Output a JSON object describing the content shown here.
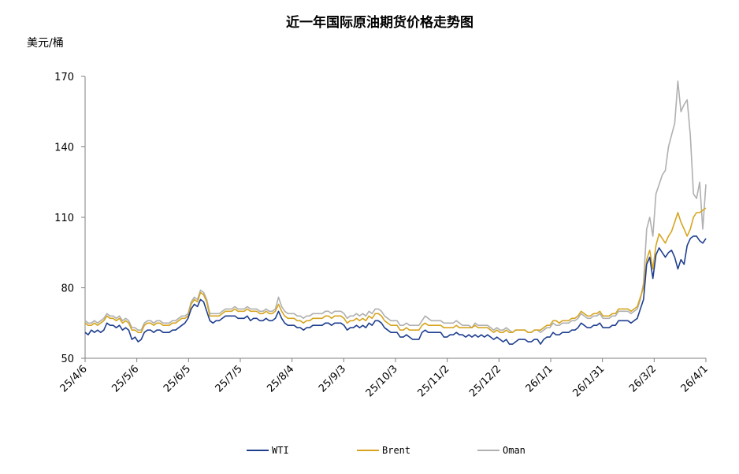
{
  "chart_data": {
    "type": "line",
    "title": "近一年国际原油期货价格走势图",
    "ylabel": "美元/桶",
    "xlabel": "",
    "ylim": [
      50,
      170
    ],
    "yticks": [
      50,
      80,
      110,
      140,
      170
    ],
    "x_ticks": [
      "25/4/6",
      "25/5/6",
      "25/6/5",
      "25/7/5",
      "25/8/4",
      "25/9/3",
      "25/10/3",
      "25/11/2",
      "25/12/2",
      "26/1/1",
      "26/1/31",
      "26/3/2",
      "26/4/1"
    ],
    "legend_position": "bottom",
    "grid": false,
    "series": [
      {
        "name": "WTI",
        "color": "#1f3f8f",
        "values": [
          61,
          60,
          62,
          61,
          62,
          61,
          62,
          65,
          64,
          64,
          63,
          64,
          62,
          63,
          62,
          58,
          59,
          57,
          58,
          61,
          62,
          62,
          61,
          62,
          62,
          61,
          61,
          61,
          62,
          62,
          63,
          64,
          65,
          67,
          71,
          73,
          72,
          75,
          74,
          70,
          66,
          65,
          66,
          66,
          67,
          68,
          68,
          68,
          68,
          67,
          67,
          67,
          68,
          66,
          67,
          67,
          66,
          66,
          67,
          66,
          66,
          67,
          70,
          67,
          65,
          64,
          64,
          64,
          63,
          63,
          62,
          63,
          63,
          64,
          64,
          64,
          64,
          65,
          65,
          64,
          65,
          65,
          65,
          64,
          62,
          63,
          63,
          64,
          63,
          64,
          63,
          65,
          64,
          66,
          66,
          65,
          63,
          62,
          61,
          61,
          61,
          59,
          59,
          60,
          59,
          58,
          58,
          58,
          61,
          62,
          61,
          61,
          61,
          61,
          61,
          59,
          59,
          60,
          60,
          61,
          60,
          60,
          59,
          60,
          59,
          60,
          59,
          60,
          59,
          60,
          59,
          58,
          59,
          58,
          57,
          58,
          56,
          56,
          57,
          58,
          58,
          58,
          57,
          57,
          58,
          58,
          56,
          58,
          59,
          59,
          61,
          60,
          60,
          61,
          61,
          61,
          62,
          62,
          63,
          65,
          64,
          63,
          63,
          64,
          64,
          65,
          63,
          63,
          63,
          64,
          64,
          66,
          66,
          66,
          66,
          65,
          66,
          67,
          71,
          75,
          90,
          93,
          84,
          94,
          97,
          95,
          93,
          95,
          96,
          93,
          88,
          92,
          90,
          98,
          101,
          102,
          102,
          100,
          99,
          101
        ]
      },
      {
        "name": "Brent",
        "color": "#d6a520",
        "values": [
          65,
          64,
          64,
          65,
          64,
          65,
          66,
          68,
          67,
          67,
          66,
          67,
          65,
          66,
          65,
          62,
          62,
          61,
          61,
          64,
          65,
          65,
          64,
          65,
          65,
          64,
          64,
          64,
          65,
          65,
          66,
          67,
          67,
          68,
          73,
          75,
          74,
          78,
          77,
          74,
          68,
          68,
          68,
          68,
          69,
          70,
          70,
          70,
          71,
          70,
          70,
          70,
          71,
          70,
          70,
          70,
          69,
          69,
          70,
          69,
          69,
          70,
          73,
          70,
          68,
          67,
          67,
          67,
          66,
          66,
          65,
          66,
          66,
          67,
          67,
          67,
          67,
          68,
          68,
          67,
          68,
          68,
          68,
          67,
          65,
          66,
          66,
          67,
          66,
          67,
          66,
          68,
          67,
          69,
          69,
          68,
          66,
          65,
          64,
          64,
          64,
          62,
          62,
          63,
          62,
          62,
          62,
          62,
          64,
          65,
          64,
          64,
          64,
          64,
          64,
          63,
          63,
          63,
          63,
          64,
          63,
          63,
          63,
          63,
          63,
          64,
          63,
          63,
          63,
          63,
          62,
          61,
          62,
          61,
          61,
          62,
          61,
          61,
          62,
          62,
          62,
          62,
          61,
          61,
          62,
          62,
          62,
          63,
          64,
          64,
          66,
          66,
          65,
          66,
          66,
          66,
          67,
          67,
          68,
          70,
          69,
          68,
          68,
          69,
          69,
          70,
          68,
          68,
          68,
          69,
          69,
          71,
          71,
          71,
          71,
          70,
          71,
          72,
          76,
          80,
          92,
          96,
          88,
          98,
          103,
          101,
          99,
          102,
          104,
          108,
          112,
          108,
          105,
          102,
          105,
          110,
          112,
          112,
          113,
          114
        ]
      },
      {
        "name": "Oman",
        "color": "#b0b0b0",
        "values": [
          66,
          65,
          65,
          66,
          65,
          66,
          67,
          69,
          68,
          68,
          67,
          68,
          66,
          67,
          66,
          63,
          63,
          62,
          62,
          65,
          66,
          66,
          65,
          66,
          66,
          65,
          65,
          65,
          66,
          66,
          67,
          68,
          68,
          69,
          74,
          76,
          75,
          79,
          78,
          75,
          69,
          69,
          69,
          69,
          70,
          71,
          71,
          71,
          72,
          71,
          71,
          71,
          72,
          71,
          71,
          71,
          70,
          70,
          71,
          70,
          70,
          71,
          76,
          72,
          70,
          69,
          69,
          69,
          68,
          68,
          67,
          68,
          68,
          69,
          69,
          69,
          69,
          70,
          70,
          69,
          70,
          70,
          70,
          69,
          67,
          68,
          68,
          69,
          68,
          69,
          68,
          70,
          69,
          71,
          71,
          70,
          68,
          67,
          66,
          66,
          66,
          64,
          64,
          65,
          64,
          64,
          64,
          64,
          66,
          68,
          67,
          66,
          66,
          66,
          66,
          65,
          65,
          65,
          65,
          66,
          65,
          64,
          64,
          64,
          63,
          65,
          64,
          64,
          64,
          64,
          63,
          62,
          63,
          62,
          62,
          63,
          62,
          61,
          62,
          62,
          62,
          62,
          61,
          61,
          62,
          62,
          61,
          62,
          63,
          63,
          65,
          64,
          64,
          65,
          65,
          65,
          66,
          66,
          67,
          69,
          68,
          67,
          67,
          68,
          68,
          69,
          67,
          67,
          67,
          68,
          68,
          70,
          70,
          70,
          70,
          69,
          70,
          71,
          75,
          82,
          105,
          110,
          102,
          120,
          124,
          128,
          130,
          140,
          145,
          150,
          168,
          155,
          158,
          160,
          145,
          120,
          118,
          125,
          105,
          124
        ]
      }
    ]
  }
}
